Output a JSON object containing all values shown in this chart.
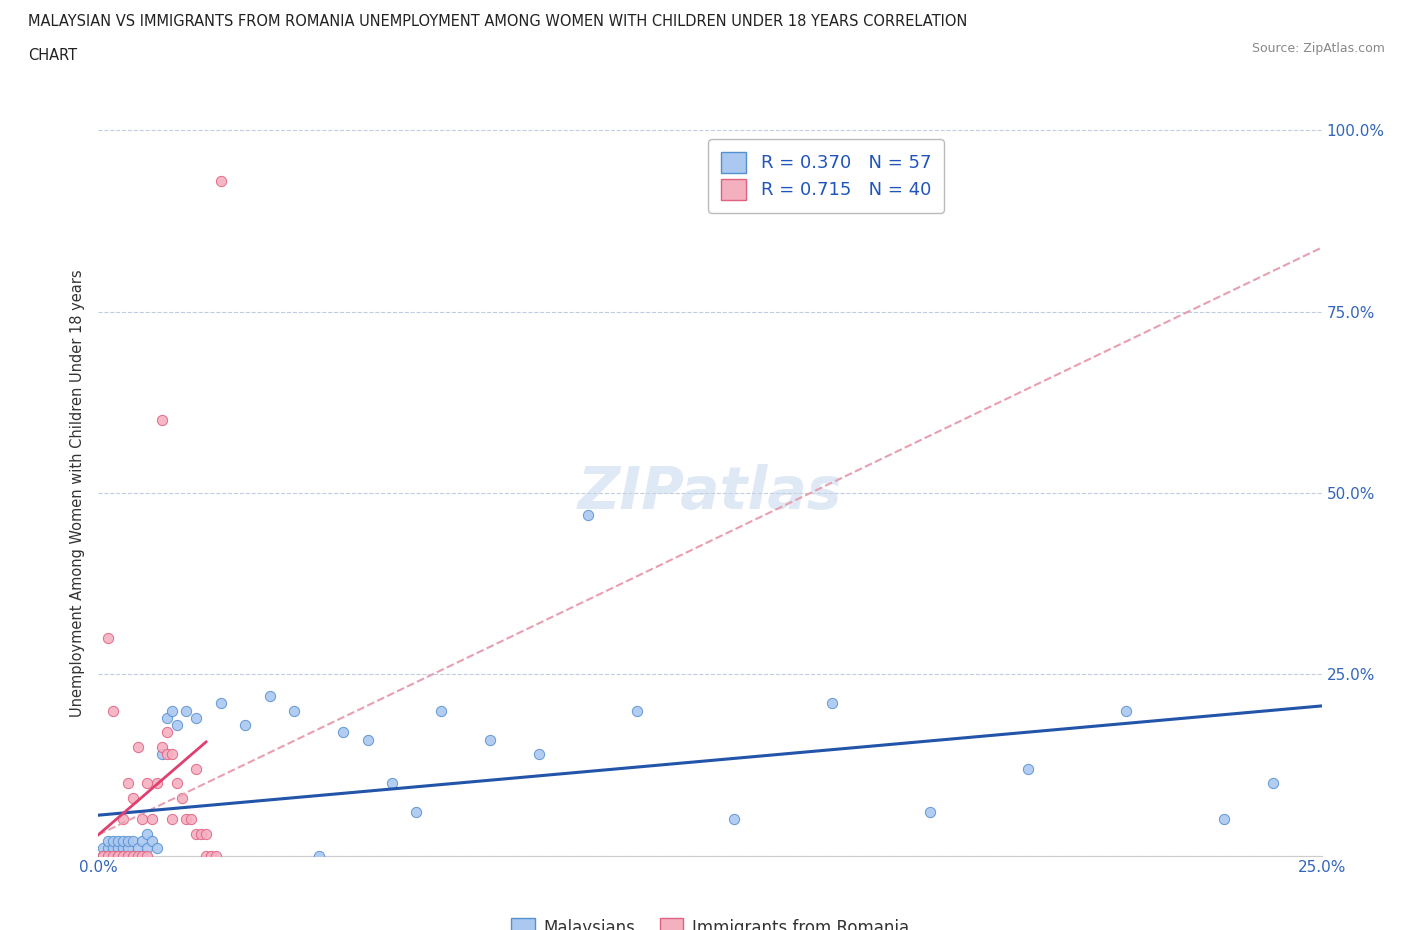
{
  "title_line1": "MALAYSIAN VS IMMIGRANTS FROM ROMANIA UNEMPLOYMENT AMONG WOMEN WITH CHILDREN UNDER 18 YEARS CORRELATION",
  "title_line2": "CHART",
  "source_text": "Source: ZipAtlas.com",
  "ylabel": "Unemployment Among Women with Children Under 18 years",
  "xlim": [
    0.0,
    0.25
  ],
  "ylim": [
    0.0,
    1.0
  ],
  "r_malaysian": 0.37,
  "n_malaysian": 57,
  "r_romanian": 0.715,
  "n_romanian": 40,
  "color_malaysian_fill": "#aac8f0",
  "color_romanian_fill": "#f5b0c0",
  "color_malaysian_edge": "#5590d0",
  "color_romanian_edge": "#e06080",
  "color_malaysian_line": "#2255aa",
  "color_romanian_line": "#e04070",
  "color_romanian_ext": "#e8a0b0",
  "legend_label_malaysian": "Malaysians",
  "legend_label_romanian": "Immigrants from Romania",
  "malaysian_x": [
    0.001,
    0.001,
    0.001,
    0.002,
    0.002,
    0.002,
    0.002,
    0.003,
    0.003,
    0.003,
    0.003,
    0.004,
    0.004,
    0.004,
    0.005,
    0.005,
    0.005,
    0.006,
    0.006,
    0.006,
    0.007,
    0.007,
    0.008,
    0.008,
    0.009,
    0.009,
    0.01,
    0.01,
    0.011,
    0.012,
    0.013,
    0.014,
    0.015,
    0.016,
    0.018,
    0.02,
    0.025,
    0.03,
    0.035,
    0.04,
    0.045,
    0.05,
    0.055,
    0.06,
    0.065,
    0.07,
    0.08,
    0.09,
    0.1,
    0.11,
    0.13,
    0.15,
    0.17,
    0.19,
    0.21,
    0.23,
    0.24
  ],
  "malaysian_y": [
    0.0,
    0.0,
    0.01,
    0.0,
    0.0,
    0.01,
    0.02,
    0.0,
    0.0,
    0.01,
    0.02,
    0.0,
    0.01,
    0.02,
    0.0,
    0.01,
    0.02,
    0.0,
    0.01,
    0.02,
    0.0,
    0.02,
    0.0,
    0.01,
    0.0,
    0.02,
    0.01,
    0.03,
    0.02,
    0.01,
    0.14,
    0.19,
    0.2,
    0.18,
    0.2,
    0.19,
    0.21,
    0.18,
    0.22,
    0.2,
    0.0,
    0.17,
    0.16,
    0.1,
    0.06,
    0.2,
    0.16,
    0.14,
    0.47,
    0.2,
    0.05,
    0.21,
    0.06,
    0.12,
    0.2,
    0.05,
    0.1
  ],
  "romanian_x": [
    0.001,
    0.001,
    0.002,
    0.002,
    0.003,
    0.003,
    0.004,
    0.004,
    0.005,
    0.005,
    0.006,
    0.006,
    0.007,
    0.007,
    0.008,
    0.008,
    0.009,
    0.009,
    0.01,
    0.01,
    0.011,
    0.012,
    0.013,
    0.013,
    0.014,
    0.014,
    0.015,
    0.015,
    0.016,
    0.017,
    0.018,
    0.019,
    0.02,
    0.02,
    0.021,
    0.022,
    0.022,
    0.023,
    0.024,
    0.025
  ],
  "romanian_y": [
    0.0,
    0.0,
    0.0,
    0.3,
    0.0,
    0.2,
    0.0,
    0.0,
    0.0,
    0.05,
    0.0,
    0.1,
    0.0,
    0.08,
    0.0,
    0.15,
    0.0,
    0.05,
    0.0,
    0.1,
    0.05,
    0.1,
    0.15,
    0.6,
    0.14,
    0.17,
    0.14,
    0.05,
    0.1,
    0.08,
    0.05,
    0.05,
    0.03,
    0.12,
    0.03,
    0.0,
    0.03,
    0.0,
    0.0,
    0.93
  ]
}
